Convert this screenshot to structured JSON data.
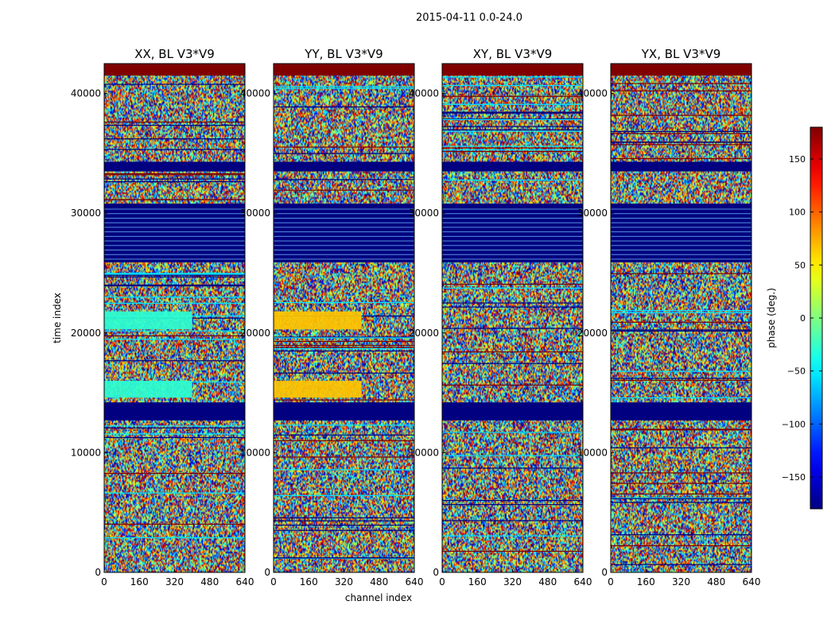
{
  "figure_title": "2015-04-11 0.0-24.0",
  "chart_data": {
    "type": "heatmap",
    "shared": {
      "xlabel": "channel index",
      "ylabel": "time index",
      "x_range": [
        0,
        640
      ],
      "y_range": [
        0,
        42500
      ],
      "x_ticks": [
        0,
        160,
        320,
        480,
        640
      ],
      "y_ticks": [
        0,
        10000,
        20000,
        30000,
        40000
      ],
      "colormap": "jet",
      "color_range": [
        -180,
        180
      ],
      "colorbar_label": "phase (deg.)",
      "colorbar_ticks": [
        150,
        100,
        50,
        0,
        -50,
        -100,
        -150
      ],
      "colorbar_tick_labels": [
        "150",
        "100",
        "50",
        "0",
        "−50",
        "−100",
        "−150"
      ]
    },
    "panels": [
      {
        "title": "XX, BL V3*V9",
        "cyan_block": true
      },
      {
        "title": "YY, BL V3*V9",
        "yellow_block": true
      },
      {
        "title": "XY, BL V3*V9"
      },
      {
        "title": "YX, BL V3*V9"
      }
    ],
    "bands": [
      {
        "y0": 41500,
        "y1": 42500,
        "kind": "max",
        "value": 180
      },
      {
        "y0": 33500,
        "y1": 34300,
        "kind": "min",
        "value": -180
      },
      {
        "y0": 25900,
        "y1": 30800,
        "kind": "min",
        "value": -180
      },
      {
        "y0": 12700,
        "y1": 14200,
        "kind": "min",
        "value": -180
      }
    ],
    "panel_bands": [
      {
        "panel": 0,
        "y0": 20300,
        "y1": 21800,
        "x0": 0,
        "x1": 400,
        "value": -30
      },
      {
        "panel": 0,
        "y0": 14600,
        "y1": 16000,
        "x0": 0,
        "x1": 400,
        "value": -30
      },
      {
        "panel": 1,
        "y0": 20300,
        "y1": 21800,
        "x0": 0,
        "x1": 400,
        "value": 65
      },
      {
        "panel": 1,
        "y0": 14600,
        "y1": 16000,
        "x0": 0,
        "x1": 400,
        "value": 65
      }
    ]
  }
}
